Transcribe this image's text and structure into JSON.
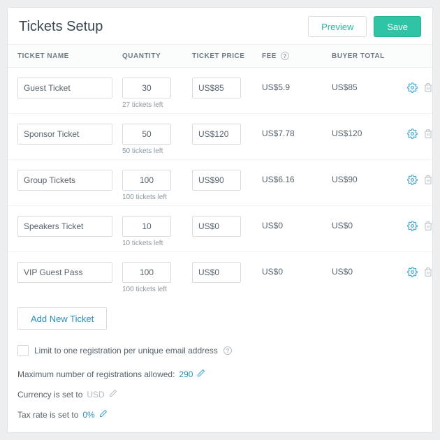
{
  "header": {
    "title": "Tickets Setup",
    "preview_label": "Preview",
    "save_label": "Save"
  },
  "columns": {
    "name": "TICKET NAME",
    "quantity": "QUANTITY",
    "price": "TICKET PRICE",
    "fee": "FEE",
    "buyer_total": "BUYER TOTAL"
  },
  "tickets": [
    {
      "name": "Guest Ticket",
      "quantity": "30",
      "left": "27 tickets left",
      "price": "US$85",
      "fee": "US$5.9",
      "total": "US$85"
    },
    {
      "name": "Sponsor Ticket",
      "quantity": "50",
      "left": "50 tickets left",
      "price": "US$120",
      "fee": "US$7.78",
      "total": "US$120"
    },
    {
      "name": "Group Tickets",
      "quantity": "100",
      "left": "100 tickets left",
      "price": "US$90",
      "fee": "US$6.16",
      "total": "US$90"
    },
    {
      "name": "Speakers Ticket",
      "quantity": "10",
      "left": "10 tickets left",
      "price": "US$0",
      "fee": "US$0",
      "total": "US$0"
    },
    {
      "name": "VIP Guest Pass",
      "quantity": "100",
      "left": "100 tickets left",
      "price": "US$0",
      "fee": "US$0",
      "total": "US$0"
    }
  ],
  "footer": {
    "add_label": "Add New Ticket",
    "limit_label": "Limit to one registration per unique email address",
    "max_label": "Maximum number of registrations allowed:",
    "max_value": "290",
    "currency_label": "Currency is set to",
    "currency_value": "USD",
    "tax_label": "Tax rate is set to",
    "tax_value": "0%"
  },
  "colors": {
    "accent_green": "#2ec4a5",
    "link_blue": "#2a8fbd",
    "icon_blue": "#3aa3d4",
    "icon_grey": "#b7c0c6"
  }
}
